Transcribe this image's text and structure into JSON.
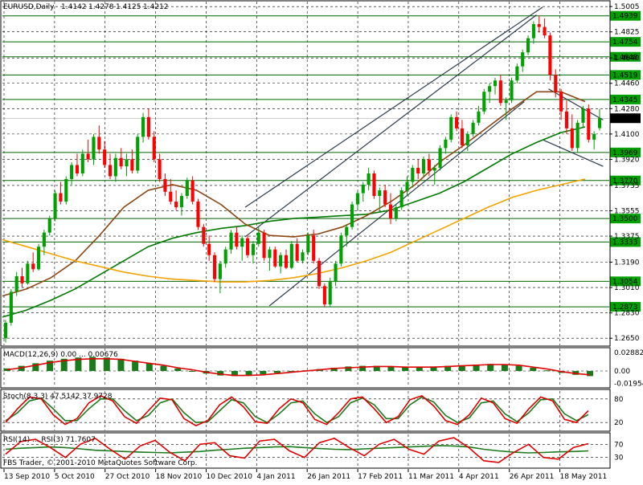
{
  "chart_data": {
    "type": "candlestick",
    "symbol_header": "EURUSD,Daily",
    "ohlc_readout": [
      "1.4142",
      "1.4278",
      "1.4125",
      "1.4212"
    ],
    "watermark": "FBS Trader, © 2001-2010 MetaQuotes Software Corp.",
    "x_tick_labels": [
      "13 Sep 2010",
      "5 Oct 2010",
      "27 Oct 2010",
      "18 Nov 2010",
      "10 Dec 2010",
      "4 Jan 2011",
      "26 Jan 2011",
      "17 Feb 2011",
      "11 Mar 2011",
      "4 Apr 2011",
      "26 Apr 2011",
      "18 May 2011"
    ],
    "main": {
      "ylim": [
        1.26,
        1.504
      ],
      "y_tick_labels": [
        "1.5005",
        "1.4825",
        "1.4640",
        "1.4460",
        "1.4280",
        "1.4100",
        "1.3920",
        "1.3735",
        "1.3555",
        "1.3375",
        "1.3190",
        "1.3010",
        "1.2830",
        "1.2650"
      ],
      "levels": [
        1.4939,
        1.4754,
        1.4648,
        1.4519,
        1.4345,
        1.3969,
        1.377,
        1.35,
        1.3333,
        1.3054,
        1.2873
      ],
      "level_labels": [
        "1.4939",
        "1.4754",
        "1.4648",
        "1.4519",
        "1.4345",
        "1.3969",
        "1.3770",
        "1.3500",
        "1.3333",
        "1.3054",
        "1.2873"
      ],
      "current_price": 1.4212,
      "current_price_label": "1.4212",
      "candles": [
        [
          1.265,
          1.278,
          1.262,
          1.276
        ],
        [
          1.276,
          1.3,
          1.274,
          1.298
        ],
        [
          1.298,
          1.312,
          1.295,
          1.309
        ],
        [
          1.309,
          1.315,
          1.301,
          1.304
        ],
        [
          1.304,
          1.32,
          1.303,
          1.318
        ],
        [
          1.318,
          1.326,
          1.312,
          1.314
        ],
        [
          1.314,
          1.332,
          1.313,
          1.33
        ],
        [
          1.33,
          1.342,
          1.324,
          1.34
        ],
        [
          1.34,
          1.352,
          1.338,
          1.35
        ],
        [
          1.35,
          1.37,
          1.348,
          1.368
        ],
        [
          1.368,
          1.376,
          1.36,
          1.362
        ],
        [
          1.362,
          1.38,
          1.36,
          1.378
        ],
        [
          1.378,
          1.39,
          1.374,
          1.388
        ],
        [
          1.388,
          1.396,
          1.38,
          1.382
        ],
        [
          1.382,
          1.399,
          1.38,
          1.396
        ],
        [
          1.396,
          1.406,
          1.39,
          1.392
        ],
        [
          1.392,
          1.41,
          1.388,
          1.408
        ],
        [
          1.408,
          1.416,
          1.396,
          1.399
        ],
        [
          1.399,
          1.405,
          1.386,
          1.388
        ],
        [
          1.388,
          1.396,
          1.378,
          1.38
        ],
        [
          1.38,
          1.396,
          1.376,
          1.393
        ],
        [
          1.393,
          1.4,
          1.385,
          1.387
        ],
        [
          1.387,
          1.396,
          1.38,
          1.392
        ],
        [
          1.392,
          1.399,
          1.382,
          1.384
        ],
        [
          1.384,
          1.41,
          1.382,
          1.408
        ],
        [
          1.408,
          1.425,
          1.404,
          1.422
        ],
        [
          1.422,
          1.428,
          1.406,
          1.408
        ],
        [
          1.408,
          1.412,
          1.39,
          1.392
        ],
        [
          1.392,
          1.396,
          1.376,
          1.378
        ],
        [
          1.378,
          1.382,
          1.366,
          1.369
        ],
        [
          1.369,
          1.378,
          1.36,
          1.362
        ],
        [
          1.362,
          1.37,
          1.356,
          1.358
        ],
        [
          1.358,
          1.368,
          1.352,
          1.366
        ],
        [
          1.366,
          1.379,
          1.364,
          1.377
        ],
        [
          1.377,
          1.38,
          1.36,
          1.362
        ],
        [
          1.362,
          1.364,
          1.342,
          1.344
        ],
        [
          1.344,
          1.346,
          1.33,
          1.332
        ],
        [
          1.332,
          1.338,
          1.32,
          1.324
        ],
        [
          1.324,
          1.326,
          1.305,
          1.307
        ],
        [
          1.307,
          1.32,
          1.297,
          1.318
        ],
        [
          1.318,
          1.33,
          1.315,
          1.328
        ],
        [
          1.328,
          1.342,
          1.325,
          1.34
        ],
        [
          1.34,
          1.344,
          1.328,
          1.33
        ],
        [
          1.33,
          1.338,
          1.32,
          1.336
        ],
        [
          1.336,
          1.338,
          1.322,
          1.324
        ],
        [
          1.324,
          1.334,
          1.318,
          1.332
        ],
        [
          1.332,
          1.344,
          1.33,
          1.34
        ],
        [
          1.34,
          1.342,
          1.32,
          1.322
        ],
        [
          1.322,
          1.33,
          1.313,
          1.328
        ],
        [
          1.328,
          1.33,
          1.315,
          1.316
        ],
        [
          1.316,
          1.326,
          1.311,
          1.324
        ],
        [
          1.324,
          1.328,
          1.314,
          1.315
        ],
        [
          1.315,
          1.334,
          1.314,
          1.332
        ],
        [
          1.332,
          1.336,
          1.319,
          1.32
        ],
        [
          1.32,
          1.328,
          1.318,
          1.326
        ],
        [
          1.326,
          1.34,
          1.324,
          1.338
        ],
        [
          1.338,
          1.342,
          1.318,
          1.32
        ],
        [
          1.32,
          1.322,
          1.3,
          1.302
        ],
        [
          1.302,
          1.304,
          1.287,
          1.289
        ],
        [
          1.289,
          1.308,
          1.287,
          1.305
        ],
        [
          1.305,
          1.32,
          1.302,
          1.318
        ],
        [
          1.318,
          1.34,
          1.316,
          1.338
        ],
        [
          1.338,
          1.346,
          1.33,
          1.344
        ],
        [
          1.344,
          1.362,
          1.342,
          1.36
        ],
        [
          1.36,
          1.37,
          1.356,
          1.368
        ],
        [
          1.368,
          1.376,
          1.362,
          1.374
        ],
        [
          1.374,
          1.386,
          1.37,
          1.382
        ],
        [
          1.382,
          1.384,
          1.364,
          1.366
        ],
        [
          1.366,
          1.372,
          1.356,
          1.37
        ],
        [
          1.37,
          1.374,
          1.358,
          1.36
        ],
        [
          1.36,
          1.368,
          1.346,
          1.35
        ],
        [
          1.35,
          1.36,
          1.348,
          1.358
        ],
        [
          1.358,
          1.372,
          1.356,
          1.37
        ],
        [
          1.37,
          1.38,
          1.366,
          1.376
        ],
        [
          1.376,
          1.388,
          1.372,
          1.386
        ],
        [
          1.386,
          1.392,
          1.378,
          1.382
        ],
        [
          1.382,
          1.394,
          1.38,
          1.392
        ],
        [
          1.392,
          1.396,
          1.38,
          1.384
        ],
        [
          1.384,
          1.388,
          1.374,
          1.386
        ],
        [
          1.386,
          1.402,
          1.384,
          1.4
        ],
        [
          1.4,
          1.408,
          1.396,
          1.406
        ],
        [
          1.406,
          1.424,
          1.404,
          1.422
        ],
        [
          1.422,
          1.426,
          1.412,
          1.414
        ],
        [
          1.414,
          1.42,
          1.4,
          1.402
        ],
        [
          1.402,
          1.412,
          1.398,
          1.41
        ],
        [
          1.41,
          1.42,
          1.408,
          1.418
        ],
        [
          1.418,
          1.43,
          1.416,
          1.426
        ],
        [
          1.426,
          1.442,
          1.424,
          1.44
        ],
        [
          1.44,
          1.446,
          1.432,
          1.444
        ],
        [
          1.444,
          1.45,
          1.438,
          1.448
        ],
        [
          1.448,
          1.452,
          1.43,
          1.432
        ],
        [
          1.432,
          1.436,
          1.42,
          1.434
        ],
        [
          1.434,
          1.45,
          1.432,
          1.448
        ],
        [
          1.448,
          1.46,
          1.446,
          1.458
        ],
        [
          1.458,
          1.47,
          1.454,
          1.468
        ],
        [
          1.468,
          1.48,
          1.466,
          1.478
        ],
        [
          1.478,
          1.49,
          1.474,
          1.488
        ],
        [
          1.488,
          1.494,
          1.482,
          1.486
        ],
        [
          1.486,
          1.492,
          1.478,
          1.48
        ],
        [
          1.48,
          1.482,
          1.448,
          1.452
        ],
        [
          1.452,
          1.456,
          1.436,
          1.44
        ],
        [
          1.44,
          1.442,
          1.42,
          1.426
        ],
        [
          1.426,
          1.434,
          1.41,
          1.414
        ],
        [
          1.414,
          1.424,
          1.398,
          1.4
        ],
        [
          1.4,
          1.42,
          1.397,
          1.418
        ],
        [
          1.418,
          1.43,
          1.415,
          1.428
        ],
        [
          1.428,
          1.431,
          1.404,
          1.406
        ],
        [
          1.406,
          1.412,
          1.399,
          1.41
        ],
        [
          1.4142,
          1.4278,
          1.4125,
          1.4212
        ]
      ],
      "moving_averages": [
        {
          "color": "#007a00",
          "values": [
            1.28,
            1.285,
            1.292,
            1.3,
            1.31,
            1.32,
            1.33,
            1.336,
            1.34,
            1.343,
            1.345,
            1.348,
            1.35,
            1.351,
            1.352,
            1.353,
            1.356,
            1.362,
            1.368,
            1.376,
            1.386,
            1.396,
            1.404,
            1.411,
            1.415
          ]
        },
        {
          "color": "#8b4513",
          "values": [
            1.295,
            1.3,
            1.308,
            1.32,
            1.338,
            1.358,
            1.37,
            1.374,
            1.37,
            1.36,
            1.346,
            1.338,
            1.337,
            1.339,
            1.344,
            1.352,
            1.362,
            1.374,
            1.39,
            1.402,
            1.415,
            1.428,
            1.44,
            1.44,
            1.433
          ]
        },
        {
          "color": "#f5a300",
          "values": [
            1.335,
            1.33,
            1.325,
            1.32,
            1.316,
            1.312,
            1.309,
            1.307,
            1.306,
            1.305,
            1.305,
            1.306,
            1.308,
            1.311,
            1.315,
            1.32,
            1.326,
            1.334,
            1.342,
            1.35,
            1.358,
            1.365,
            1.37,
            1.374,
            1.378
          ]
        }
      ]
    },
    "macd": {
      "readout": "MACD(12,26,9) 0.00 ... 0.00676",
      "ylim": [
        -0.025,
        0.035
      ],
      "y_tick_labels": [
        "0.02882",
        "0.00",
        "-0.01954"
      ],
      "histogram": [
        0.004,
        0.008,
        0.012,
        0.016,
        0.019,
        0.021,
        0.022,
        0.021,
        0.019,
        0.016,
        0.012,
        0.008,
        0.004,
        0.0,
        -0.004,
        -0.007,
        -0.008,
        -0.007,
        -0.005,
        -0.003,
        -0.001,
        0.001,
        0.003,
        0.005,
        0.007,
        0.008,
        0.008,
        0.007,
        0.006,
        0.006,
        0.007,
        0.008,
        0.009,
        0.01,
        0.011,
        0.01,
        0.008,
        0.005,
        0.001,
        -0.003,
        -0.006,
        -0.008
      ],
      "signal": [
        0.002,
        0.005,
        0.009,
        0.013,
        0.016,
        0.018,
        0.019,
        0.019,
        0.018,
        0.015,
        0.012,
        0.009,
        0.005,
        0.002,
        -0.002,
        -0.005,
        -0.007,
        -0.007,
        -0.006,
        -0.004,
        -0.002,
        0.0,
        0.002,
        0.004,
        0.005,
        0.006,
        0.007,
        0.007,
        0.006,
        0.006,
        0.006,
        0.007,
        0.008,
        0.009,
        0.01,
        0.01,
        0.009,
        0.006,
        0.003,
        -0.001,
        -0.004,
        -0.006
      ]
    },
    "stochastic": {
      "readout": "Stoch(8,3,3) 47.5142 37.9728",
      "ylim": [
        0,
        100
      ],
      "y_tick_labels": [
        "80",
        "20"
      ],
      "k": [
        20,
        55,
        85,
        80,
        40,
        15,
        30,
        70,
        88,
        75,
        35,
        18,
        50,
        82,
        78,
        30,
        12,
        25,
        65,
        85,
        60,
        22,
        18,
        55,
        80,
        70,
        28,
        15,
        45,
        80,
        85,
        55,
        20,
        35,
        78,
        88,
        62,
        25,
        15,
        40,
        82,
        70,
        30,
        18,
        55,
        85,
        75,
        28,
        20,
        50
      ],
      "d": [
        25,
        45,
        75,
        82,
        55,
        25,
        25,
        55,
        80,
        80,
        50,
        25,
        38,
        70,
        80,
        45,
        20,
        22,
        50,
        78,
        70,
        35,
        20,
        42,
        70,
        75,
        42,
        20,
        35,
        70,
        82,
        65,
        30,
        30,
        65,
        85,
        72,
        38,
        20,
        32,
        70,
        75,
        42,
        22,
        45,
        78,
        80,
        42,
        25,
        40
      ]
    },
    "rsi": {
      "readout": "RSI(14) ... RSI(3) 71.7607",
      "ylim": [
        0,
        100
      ],
      "y_tick_labels": [
        "70",
        "30"
      ],
      "rsi_slow": [
        55,
        58,
        60,
        62,
        60,
        56,
        52,
        50,
        48,
        46,
        45,
        44,
        46,
        48,
        52,
        55,
        58,
        60,
        62,
        63,
        60,
        57,
        55,
        54,
        56,
        58,
        60,
        62,
        64,
        66,
        65,
        62,
        55,
        50,
        46,
        44,
        45,
        47,
        48,
        50
      ],
      "rsi_fast": [
        40,
        78,
        85,
        60,
        30,
        70,
        88,
        55,
        25,
        65,
        82,
        45,
        20,
        70,
        75,
        35,
        28,
        80,
        85,
        50,
        30,
        75,
        88,
        60,
        35,
        70,
        85,
        55,
        40,
        80,
        90,
        60,
        20,
        15,
        45,
        70,
        30,
        25,
        60,
        72
      ]
    }
  }
}
